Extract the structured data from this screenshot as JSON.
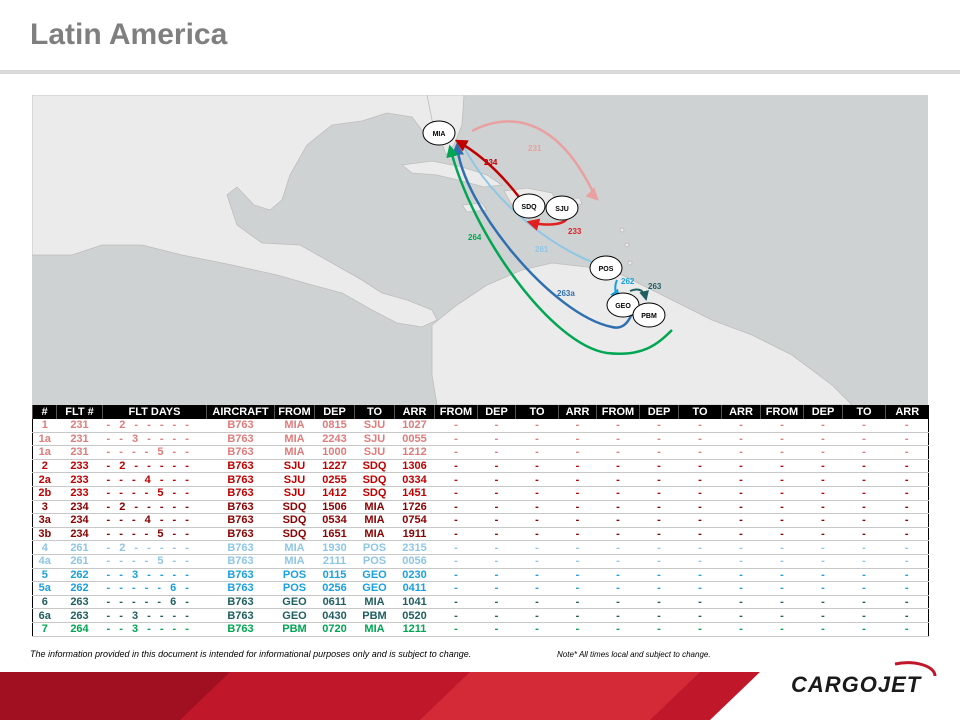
{
  "title": "Latin America",
  "colors": {
    "pink": "#e07b7b",
    "red": "#c00000",
    "lightblue": "#8ec6e6",
    "blue": "#1aa0e0",
    "darkgreen": "#1f5f5f",
    "green": "#00a651",
    "navy": "#2f6fb0"
  },
  "map": {
    "airports": [
      "MIA",
      "SDQ",
      "SJU",
      "POS",
      "GEO",
      "PBM"
    ],
    "route_labels": [
      "231",
      "234",
      "233",
      "264",
      "261",
      "262",
      "263",
      "263a"
    ]
  },
  "table": {
    "headers": [
      "#",
      "FLT #",
      "FLT DAYS",
      "AIRCRAFT",
      "FROM",
      "DEP",
      "TO",
      "ARR",
      "FROM",
      "DEP",
      "TO",
      "ARR",
      "FROM",
      "DEP",
      "TO",
      "ARR",
      "FROM",
      "DEP",
      "TO",
      "ARR"
    ],
    "rows": [
      {
        "c": "#e07b7b",
        "id": "1",
        "flt": "231",
        "days": "- 2 - - - - -",
        "ac": "B763",
        "from": "MIA",
        "dep": "0815",
        "to": "SJU",
        "arr": "1027"
      },
      {
        "c": "#e07b7b",
        "id": "1a",
        "flt": "231",
        "days": "- - 3 - - - -",
        "ac": "B763",
        "from": "MIA",
        "dep": "2243",
        "to": "SJU",
        "arr": "0055"
      },
      {
        "c": "#e07b7b",
        "id": "1a",
        "flt": "231",
        "days": "- - - - 5 - -",
        "ac": "B763",
        "from": "MIA",
        "dep": "1000",
        "to": "SJU",
        "arr": "1212"
      },
      {
        "c": "#c00000",
        "id": "2",
        "flt": "233",
        "days": "- 2 - - - - -",
        "ac": "B763",
        "from": "SJU",
        "dep": "1227",
        "to": "SDQ",
        "arr": "1306"
      },
      {
        "c": "#c00000",
        "id": "2a",
        "flt": "233",
        "days": "- - - 4 - - -",
        "ac": "B763",
        "from": "SJU",
        "dep": "0255",
        "to": "SDQ",
        "arr": "0334"
      },
      {
        "c": "#c00000",
        "id": "2b",
        "flt": "233",
        "days": "- - - - 5 - -",
        "ac": "B763",
        "from": "SJU",
        "dep": "1412",
        "to": "SDQ",
        "arr": "1451"
      },
      {
        "c": "#8b0000",
        "id": "3",
        "flt": "234",
        "days": "- 2 - - - - -",
        "ac": "B763",
        "from": "SDQ",
        "dep": "1506",
        "to": "MIA",
        "arr": "1726"
      },
      {
        "c": "#8b0000",
        "id": "3a",
        "flt": "234",
        "days": "- - - 4 - - -",
        "ac": "B763",
        "from": "SDQ",
        "dep": "0534",
        "to": "MIA",
        "arr": "0754"
      },
      {
        "c": "#8b0000",
        "id": "3b",
        "flt": "234",
        "days": "- - - - 5 - -",
        "ac": "B763",
        "from": "SDQ",
        "dep": "1651",
        "to": "MIA",
        "arr": "1911"
      },
      {
        "c": "#8ec6e6",
        "id": "4",
        "flt": "261",
        "days": "- 2 - - - - -",
        "ac": "B763",
        "from": "MIA",
        "dep": "1930",
        "to": "POS",
        "arr": "2315"
      },
      {
        "c": "#8ec6e6",
        "id": "4a",
        "flt": "261",
        "days": "- - - - 5 - -",
        "ac": "B763",
        "from": "MIA",
        "dep": "2111",
        "to": "POS",
        "arr": "0056"
      },
      {
        "c": "#1aa0e0",
        "id": "5",
        "flt": "262",
        "days": "- - 3 - - - -",
        "ac": "B763",
        "from": "POS",
        "dep": "0115",
        "to": "GEO",
        "arr": "0230"
      },
      {
        "c": "#1aa0e0",
        "id": "5a",
        "flt": "262",
        "days": "- - - - - 6 -",
        "ac": "B763",
        "from": "POS",
        "dep": "0256",
        "to": "GEO",
        "arr": "0411"
      },
      {
        "c": "#1f5f5f",
        "id": "6",
        "flt": "263",
        "days": "- - - - - 6 -",
        "ac": "B763",
        "from": "GEO",
        "dep": "0611",
        "to": "MIA",
        "arr": "1041"
      },
      {
        "c": "#1f5f5f",
        "id": "6a",
        "flt": "263",
        "days": "- - 3 - - - -",
        "ac": "B763",
        "from": "GEO",
        "dep": "0430",
        "to": "PBM",
        "arr": "0520"
      },
      {
        "c": "#00a651",
        "id": "7",
        "flt": "264",
        "days": "- - 3 - - - -",
        "ac": "B763",
        "from": "PBM",
        "dep": "0720",
        "to": "MIA",
        "arr": "1211"
      }
    ],
    "empty_cell": "-"
  },
  "footnote": "The information provided in this document is intended for informational purposes only and is subject to change.",
  "footnote_note": "Note* All times local and subject to change.",
  "logo_text": "CARGOJET"
}
